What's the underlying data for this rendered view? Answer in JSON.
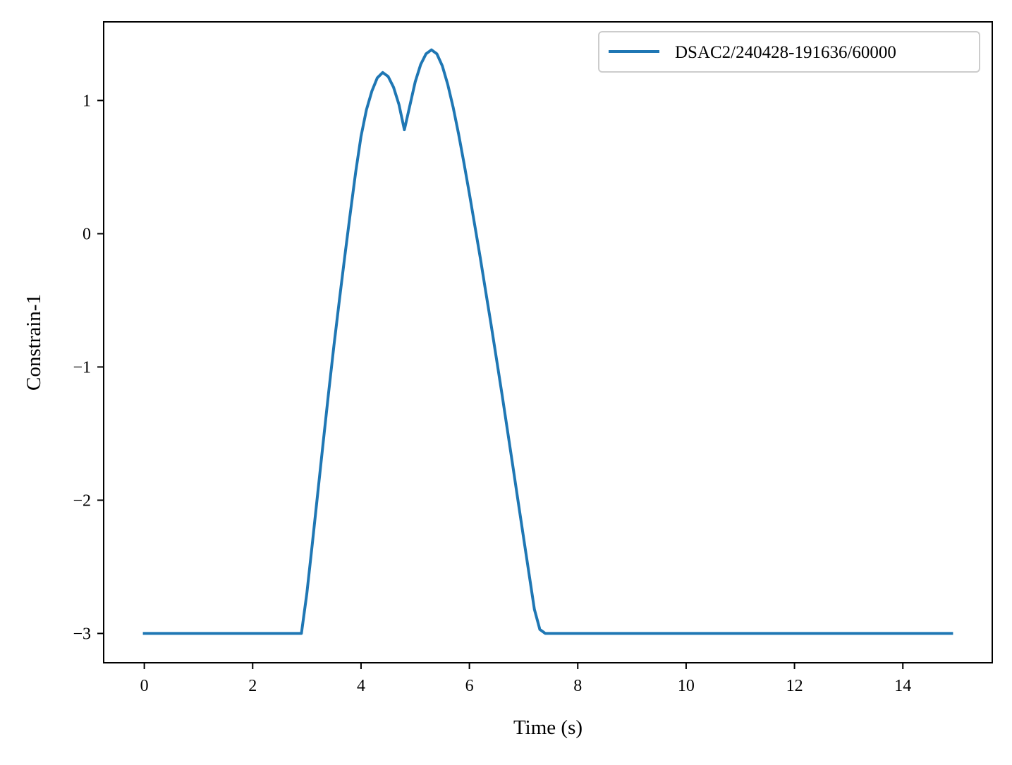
{
  "chart_data": {
    "type": "line",
    "title": "",
    "xlabel": "Time (s)",
    "ylabel": "Constrain-1",
    "xlim": [
      -0.75,
      15.65
    ],
    "ylim": [
      -3.22,
      1.59
    ],
    "xticks": [
      0,
      2,
      4,
      6,
      8,
      10,
      12,
      14
    ],
    "xtick_labels": [
      "0",
      "2",
      "4",
      "6",
      "8",
      "10",
      "12",
      "14"
    ],
    "yticks": [
      -3,
      -2,
      -1,
      0,
      1
    ],
    "ytick_labels": [
      "−3",
      "−2",
      "−1",
      "0",
      "1"
    ],
    "grid": false,
    "legend_position": "top-right",
    "series": [
      {
        "name": "DSAC2/240428-191636/60000",
        "color": "#1f77b4",
        "x": [
          0.0,
          0.5,
          1.0,
          1.5,
          2.0,
          2.5,
          2.9,
          3.0,
          3.1,
          3.2,
          3.3,
          3.4,
          3.5,
          3.6,
          3.7,
          3.8,
          3.9,
          4.0,
          4.1,
          4.2,
          4.3,
          4.4,
          4.5,
          4.6,
          4.7,
          4.8,
          4.9,
          5.0,
          5.1,
          5.2,
          5.3,
          5.4,
          5.5,
          5.6,
          5.7,
          5.8,
          5.9,
          6.0,
          6.1,
          6.2,
          6.3,
          6.4,
          6.5,
          6.6,
          6.7,
          6.8,
          6.9,
          7.0,
          7.1,
          7.2,
          7.3,
          7.4,
          7.5,
          8.0,
          9.0,
          10.0,
          11.0,
          12.0,
          13.0,
          14.0,
          14.9
        ],
        "y": [
          -3.0,
          -3.0,
          -3.0,
          -3.0,
          -3.0,
          -3.0,
          -3.0,
          -2.7,
          -2.33,
          -1.95,
          -1.57,
          -1.2,
          -0.84,
          -0.5,
          -0.17,
          0.15,
          0.46,
          0.73,
          0.93,
          1.07,
          1.17,
          1.21,
          1.18,
          1.1,
          0.97,
          0.78,
          0.96,
          1.14,
          1.27,
          1.35,
          1.38,
          1.35,
          1.26,
          1.12,
          0.95,
          0.75,
          0.53,
          0.3,
          0.06,
          -0.18,
          -0.43,
          -0.68,
          -0.94,
          -1.2,
          -1.47,
          -1.74,
          -2.01,
          -2.28,
          -2.55,
          -2.82,
          -2.97,
          -3.0,
          -3.0,
          -3.0,
          -3.0,
          -3.0,
          -3.0,
          -3.0,
          -3.0,
          -3.0,
          -3.0
        ]
      }
    ]
  }
}
